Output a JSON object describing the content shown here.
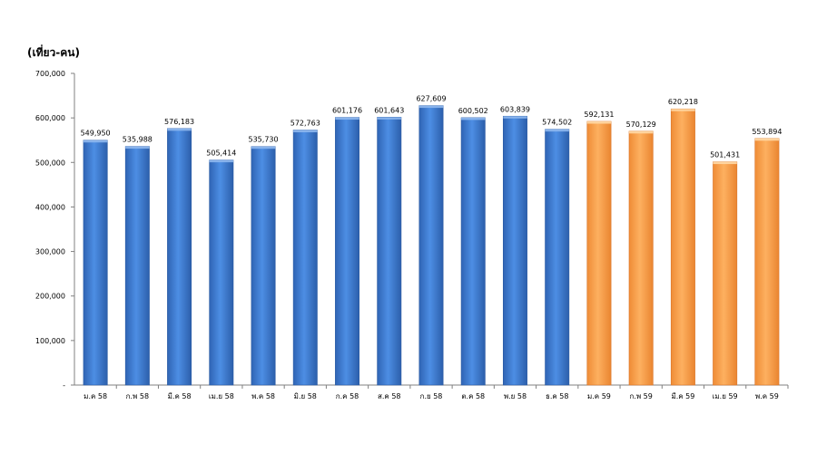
{
  "chart_data": {
    "type": "bar",
    "ylabel": "(เที่ยว-คน)",
    "ylim": [
      0,
      700000
    ],
    "yticks": [
      0,
      100000,
      200000,
      300000,
      400000,
      500000,
      600000,
      700000
    ],
    "ytick_labels": [
      "-",
      "100,000",
      "200,000",
      "300,000",
      "400,000",
      "500,000",
      "600,000",
      "700,000"
    ],
    "categories": [
      "ม.ค 58",
      "ก.พ 58",
      "มี.ค 58",
      "เม.ย 58",
      "พ.ค 58",
      "มิ.ย 58",
      "ก.ค 58",
      "ส.ค 58",
      "ก.ย 58",
      "ต.ค 58",
      "พ.ย 58",
      "ธ.ค 58",
      "ม.ค 59",
      "ก.พ 59",
      "มี.ค 59",
      "เม.ย 59",
      "พ.ค 59"
    ],
    "values": [
      549950,
      535988,
      576183,
      505414,
      535730,
      572763,
      601176,
      601643,
      627609,
      600502,
      603839,
      574502,
      592131,
      570129,
      620218,
      501431,
      553894
    ],
    "value_labels": [
      "549,950",
      "535,988",
      "576,183",
      "505,414",
      "535,730",
      "572,763",
      "601,176",
      "601,643",
      "627,609",
      "600,502",
      "603,839",
      "574,502",
      "592,131",
      "570,129",
      "620,218",
      "501,431",
      "553,894"
    ],
    "bar_colors": [
      "#3a78cf",
      "#3a78cf",
      "#3a78cf",
      "#3a78cf",
      "#3a78cf",
      "#3a78cf",
      "#3a78cf",
      "#3a78cf",
      "#3a78cf",
      "#3a78cf",
      "#3a78cf",
      "#3a78cf",
      "#f79b45",
      "#f79b45",
      "#f79b45",
      "#f79b45",
      "#f79b45"
    ],
    "grid": false,
    "legend": "none"
  }
}
